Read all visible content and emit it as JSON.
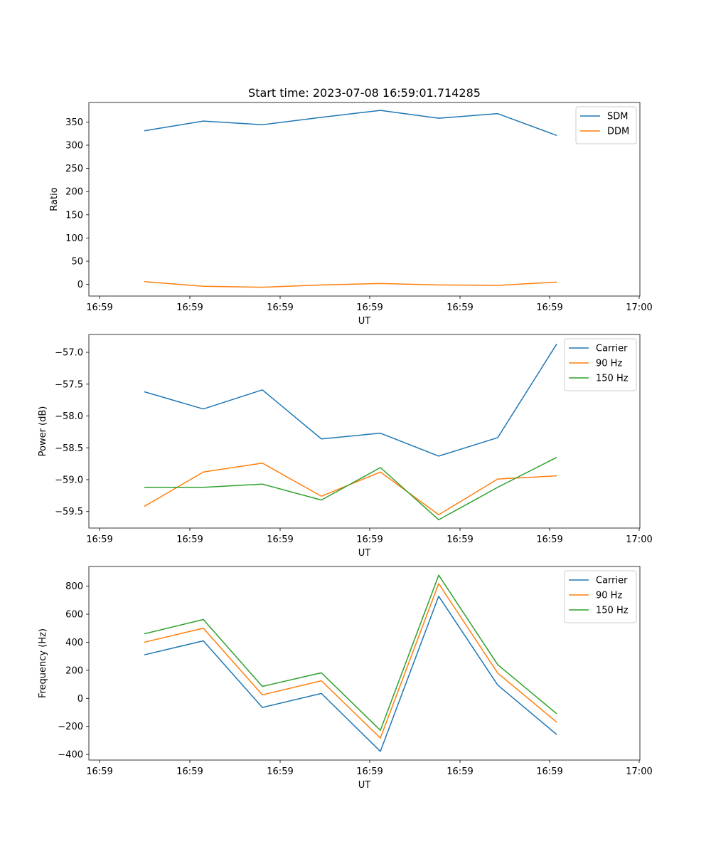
{
  "figure_title": "Start time: 2023-07-08 16:59:01.714285",
  "chart_data": [
    {
      "type": "line",
      "title": "Start time: 2023-07-08 16:59:01.714285",
      "xlabel": "UT",
      "ylabel": "Ratio",
      "x_tick_labels": [
        "16:59",
        "16:59",
        "16:59",
        "16:59",
        "16:59",
        "16:59",
        "17:00"
      ],
      "y_ticks": [
        0,
        50,
        100,
        150,
        200,
        250,
        300,
        350
      ],
      "ylim": [
        -25,
        392
      ],
      "legend_position": "top-right",
      "series": [
        {
          "name": "SDM",
          "color": "#1f77b4",
          "values": [
            331,
            352,
            344,
            360,
            375,
            358,
            368,
            321
          ]
        },
        {
          "name": "DDM",
          "color": "#ff7f0e",
          "values": [
            6,
            -4,
            -6,
            -1,
            2,
            -1,
            -2,
            5
          ]
        }
      ]
    },
    {
      "type": "line",
      "title": "",
      "xlabel": "UT",
      "ylabel": "Power (dB)",
      "x_tick_labels": [
        "16:59",
        "16:59",
        "16:59",
        "16:59",
        "16:59",
        "16:59",
        "17:00"
      ],
      "y_ticks": [
        -59.5,
        -59.0,
        -58.5,
        -58.0,
        -57.5,
        -57.0
      ],
      "y_tick_labels": [
        "−59.5",
        "−59.0",
        "−58.5",
        "−58.0",
        "−57.5",
        "−57.0"
      ],
      "ylim": [
        -59.76,
        -56.72
      ],
      "legend_position": "top-right",
      "series": [
        {
          "name": "Carrier",
          "color": "#1f77b4",
          "values": [
            -57.62,
            -57.89,
            -57.59,
            -58.36,
            -58.27,
            -58.63,
            -58.34,
            -56.87
          ]
        },
        {
          "name": "90 Hz",
          "color": "#ff7f0e",
          "values": [
            -59.42,
            -58.88,
            -58.74,
            -59.26,
            -58.88,
            -59.55,
            -58.99,
            -58.94
          ]
        },
        {
          "name": "150 Hz",
          "color": "#2ca02c",
          "values": [
            -59.12,
            -59.12,
            -59.07,
            -59.32,
            -58.81,
            -59.63,
            -59.12,
            -58.65
          ]
        }
      ]
    },
    {
      "type": "line",
      "title": "",
      "xlabel": "UT",
      "ylabel": "Frequency (Hz)",
      "x_tick_labels": [
        "16:59",
        "16:59",
        "16:59",
        "16:59",
        "16:59",
        "16:59",
        "17:00"
      ],
      "y_ticks": [
        -400,
        -200,
        0,
        200,
        400,
        600,
        800
      ],
      "y_tick_labels": [
        "−400",
        "−200",
        "0",
        "200",
        "400",
        "600",
        "800"
      ],
      "ylim": [
        -440,
        940
      ],
      "legend_position": "top-right",
      "series": [
        {
          "name": "Carrier",
          "color": "#1f77b4",
          "values": [
            310,
            410,
            -65,
            35,
            -378,
            728,
            95,
            -258
          ]
        },
        {
          "name": "90 Hz",
          "color": "#ff7f0e",
          "values": [
            400,
            500,
            25,
            125,
            -283,
            818,
            180,
            -170
          ]
        },
        {
          "name": "150 Hz",
          "color": "#2ca02c",
          "values": [
            460,
            562,
            85,
            182,
            -228,
            878,
            240,
            -110
          ]
        }
      ]
    }
  ]
}
